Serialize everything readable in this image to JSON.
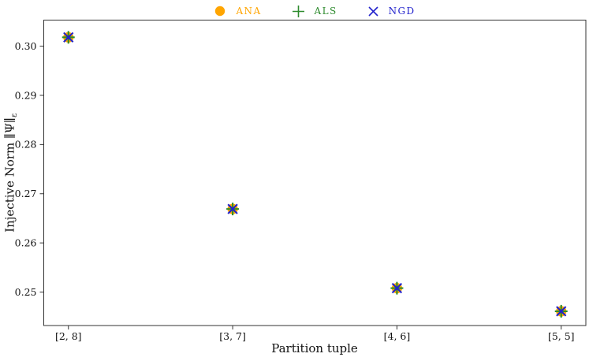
{
  "figure": {
    "background": "#ffffff",
    "text_color": "#111111",
    "axis_color": "#333333"
  },
  "legend": {
    "position": "upper-center",
    "items": [
      {
        "label": "ANA",
        "marker": "circle",
        "color": "#FFA500"
      },
      {
        "label": "ALS",
        "marker": "plus",
        "color": "#2e8b2e"
      },
      {
        "label": "NGD",
        "marker": "x",
        "color": "#2222cc"
      }
    ]
  },
  "labels": {
    "xlabel": "Partition tuple",
    "ylabel_main": "Injective Norm ∥Ψ∥",
    "ylabel_sub": "ε"
  },
  "chart_data": {
    "type": "scatter",
    "title": "",
    "xlabel": "Partition tuple",
    "ylabel": "Injective Norm ∥Ψ∥ε",
    "categories": [
      "[2, 8]",
      "[3, 7]",
      "[4, 6]",
      "[5, 5]"
    ],
    "series": [
      {
        "name": "ANA",
        "marker": "circle",
        "color": "#FFA500",
        "values": [
          0.3018,
          0.2669,
          0.2508,
          0.2461
        ]
      },
      {
        "name": "ALS",
        "marker": "plus",
        "color": "#2e8b2e",
        "values": [
          0.3018,
          0.2669,
          0.2508,
          0.2461
        ]
      },
      {
        "name": "NGD",
        "marker": "x",
        "color": "#2222cc",
        "values": [
          0.3018,
          0.2669,
          0.2508,
          0.2461
        ]
      }
    ],
    "yticks": [
      0.25,
      0.26,
      0.27,
      0.28,
      0.29,
      0.3
    ],
    "ylim": [
      0.2432,
      0.3053
    ],
    "xlim": [
      -0.15,
      3.15
    ],
    "grid": false,
    "legend_position": "top-center",
    "notes": "All three series overlap exactly at every partition tuple"
  }
}
